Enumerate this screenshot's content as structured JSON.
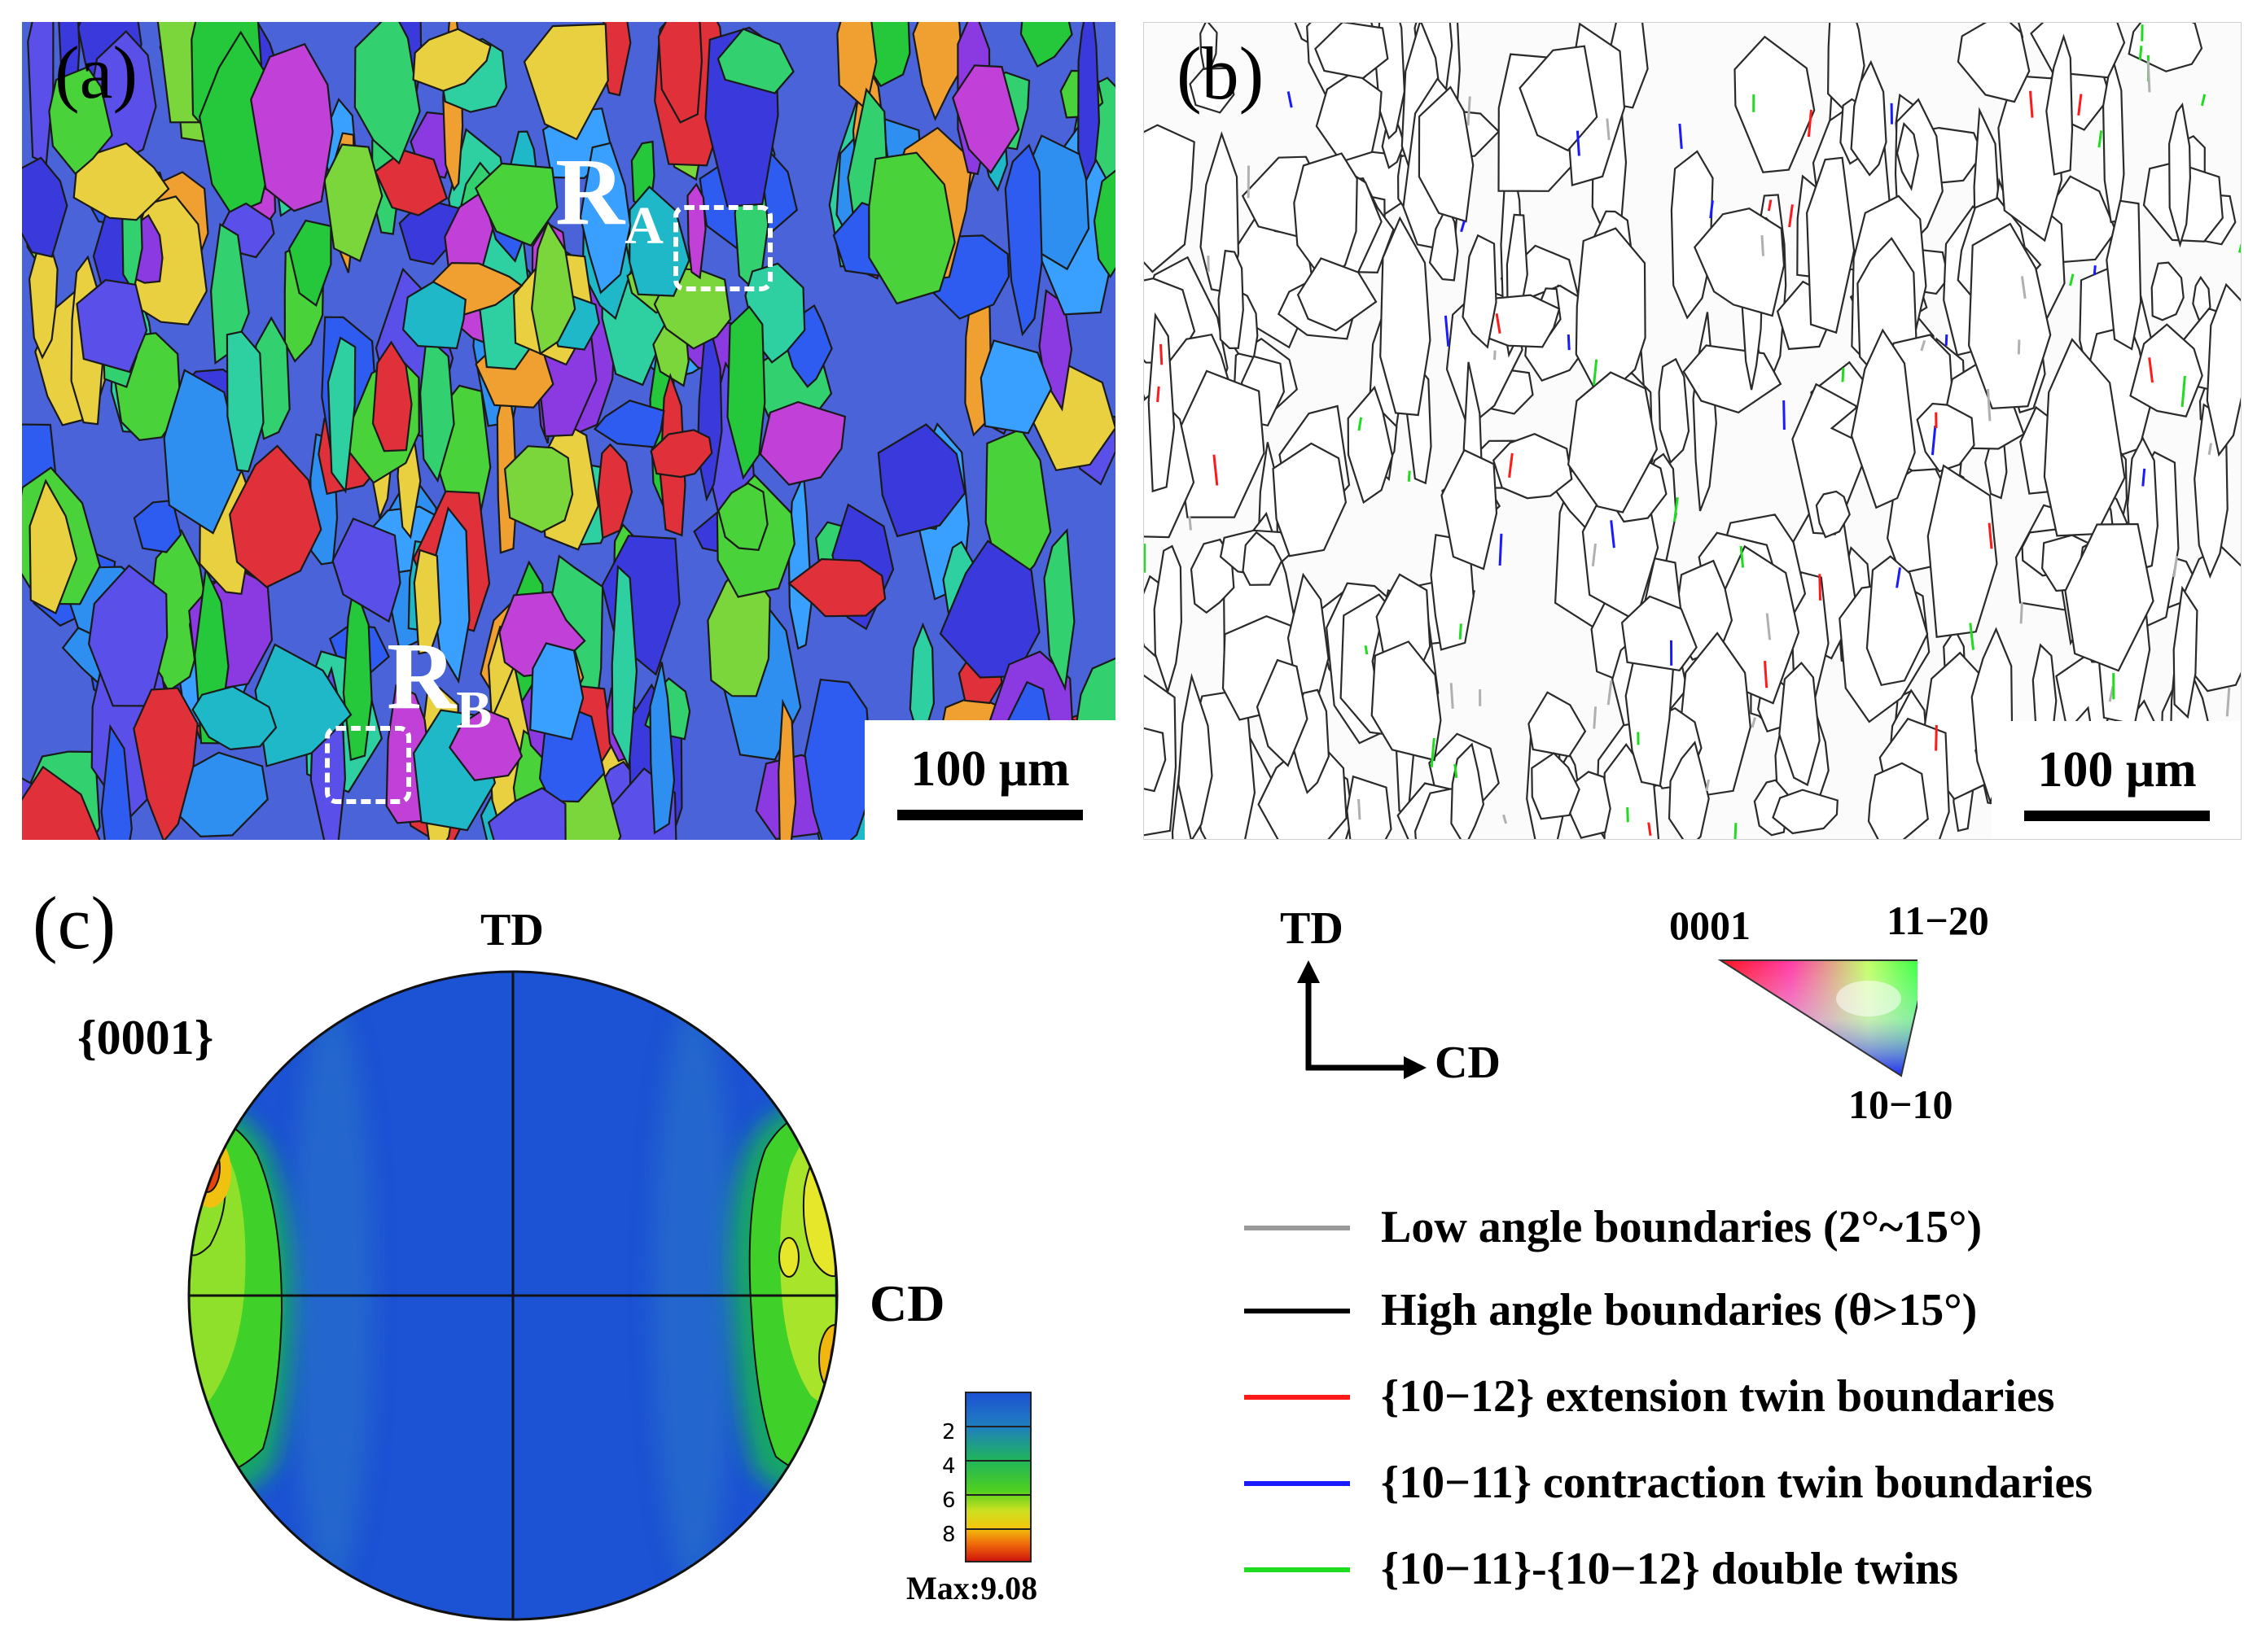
{
  "panels": {
    "a": {
      "label": "(a)",
      "region_a": {
        "letter": "R",
        "sub": "A"
      },
      "region_b": {
        "letter": "R",
        "sub": "B"
      },
      "scale": "100 μm"
    },
    "b": {
      "label": "(b)",
      "scale": "100 μm"
    },
    "c": {
      "label": "(c)",
      "plane": "{0001}",
      "top_axis": "TD",
      "right_axis": "CD",
      "colorbar": {
        "ticks": [
          "2",
          "4",
          "6",
          "8"
        ],
        "max_label": "Max:9.08"
      }
    }
  },
  "axes_key": {
    "vertical": "TD",
    "horizontal": "CD"
  },
  "ipf_key": {
    "top_left": "0001",
    "top_right": "11−20",
    "bottom": "10−10"
  },
  "legend": [
    {
      "label": "Low angle boundaries (2°~15°)",
      "color": "#9a9a9a"
    },
    {
      "label": "High angle boundaries (θ>15°)",
      "color": "#000000"
    },
    {
      "label": "{10−12} extension twin boundaries",
      "color": "#ff1a1a"
    },
    {
      "label": "{10−11} contraction twin boundaries",
      "color": "#1a1aff"
    },
    {
      "label": "{10−11}-{10−12} double twins",
      "color": "#1edc1e"
    }
  ]
}
